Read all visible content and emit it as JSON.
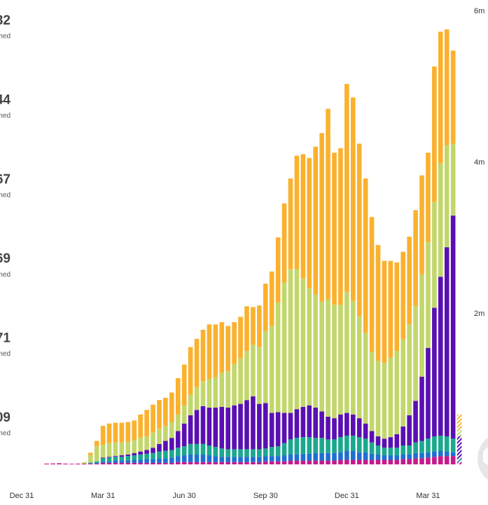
{
  "side_panel": [
    {
      "value": "32",
      "label": "med"
    },
    {
      "value": "44",
      "label": "med"
    },
    {
      "value": "67",
      "label": "med"
    },
    {
      "value": "69",
      "label": "med"
    },
    {
      "value": "71",
      "label": "med"
    },
    {
      "value": "09",
      "label": "med"
    }
  ],
  "chart_data": {
    "type": "stacked_bar",
    "categories": [
      "Dec 31",
      null,
      null,
      null,
      null,
      null,
      null,
      null,
      null,
      null,
      null,
      null,
      null,
      "Mar 31",
      null,
      null,
      null,
      null,
      null,
      null,
      null,
      null,
      null,
      null,
      null,
      null,
      "Jun 30",
      null,
      null,
      null,
      null,
      null,
      null,
      null,
      null,
      null,
      null,
      null,
      null,
      "Sep 30",
      null,
      null,
      null,
      null,
      null,
      null,
      null,
      null,
      null,
      null,
      null,
      null,
      "Dec 31",
      null,
      null,
      null,
      null,
      null,
      null,
      null,
      null,
      null,
      null,
      null,
      null,
      "Mar 31",
      null,
      null,
      null,
      null,
      null
    ],
    "series": [
      {
        "color": "#c51b8a",
        "values": [
          0,
          0,
          0,
          0,
          10000,
          12000,
          15000,
          10000,
          8000,
          10000,
          10000,
          10000,
          10000,
          20000,
          20000,
          20000,
          20000,
          20000,
          20000,
          20000,
          20000,
          20000,
          20000,
          20000,
          20000,
          30000,
          30000,
          30000,
          30000,
          30000,
          30000,
          30000,
          30000,
          30000,
          30000,
          30000,
          30000,
          30000,
          30000,
          40000,
          40000,
          40000,
          40000,
          50000,
          50000,
          50000,
          50000,
          50000,
          50000,
          50000,
          50000,
          60000,
          60000,
          60000,
          60000,
          60000,
          60000,
          60000,
          60000,
          60000,
          60000,
          70000,
          70000,
          80000,
          80000,
          90000,
          100000,
          110000,
          110000,
          110000,
          30000
        ]
      },
      {
        "color": "#1f6fd1",
        "values": [
          0,
          0,
          0,
          0,
          0,
          0,
          0,
          0,
          0,
          0,
          0,
          5000,
          10000,
          20000,
          20000,
          30000,
          30000,
          30000,
          40000,
          40000,
          50000,
          50000,
          60000,
          60000,
          70000,
          80000,
          90000,
          100000,
          100000,
          100000,
          90000,
          80000,
          70000,
          70000,
          70000,
          70000,
          70000,
          70000,
          70000,
          70000,
          70000,
          70000,
          80000,
          80000,
          80000,
          90000,
          90000,
          100000,
          100000,
          100000,
          100000,
          100000,
          120000,
          120000,
          100000,
          100000,
          80000,
          70000,
          60000,
          60000,
          60000,
          60000,
          60000,
          70000,
          70000,
          70000,
          70000,
          70000,
          60000,
          50000,
          10000
        ]
      },
      {
        "color": "#1aa88e",
        "values": [
          0,
          0,
          0,
          0,
          0,
          0,
          0,
          0,
          0,
          0,
          0,
          10000,
          20000,
          40000,
          50000,
          50000,
          50000,
          60000,
          60000,
          70000,
          70000,
          80000,
          90000,
          100000,
          100000,
          110000,
          120000,
          140000,
          140000,
          140000,
          130000,
          120000,
          110000,
          100000,
          100000,
          100000,
          100000,
          100000,
          100000,
          100000,
          120000,
          130000,
          160000,
          200000,
          220000,
          220000,
          220000,
          200000,
          200000,
          180000,
          180000,
          200000,
          200000,
          200000,
          200000,
          180000,
          150000,
          120000,
          100000,
          100000,
          100000,
          120000,
          120000,
          140000,
          160000,
          180000,
          200000,
          200000,
          200000,
          180000,
          30000
        ]
      },
      {
        "color": "#5a0fb3",
        "values": [
          0,
          0,
          0,
          0,
          0,
          0,
          0,
          0,
          0,
          0,
          0,
          0,
          0,
          10000,
          10000,
          10000,
          20000,
          20000,
          30000,
          40000,
          50000,
          70000,
          100000,
          130000,
          160000,
          220000,
          300000,
          380000,
          450000,
          500000,
          500000,
          520000,
          550000,
          550000,
          580000,
          600000,
          650000,
          700000,
          600000,
          600000,
          450000,
          450000,
          400000,
          350000,
          380000,
          400000,
          420000,
          400000,
          350000,
          300000,
          280000,
          300000,
          300000,
          280000,
          250000,
          200000,
          150000,
          120000,
          120000,
          140000,
          180000,
          250000,
          400000,
          550000,
          850000,
          1200000,
          1700000,
          2100000,
          2500000,
          2950000,
          300000
        ]
      },
      {
        "color": "#c2d76b",
        "values": [
          0,
          0,
          0,
          0,
          0,
          0,
          0,
          0,
          0,
          0,
          20000,
          100000,
          200000,
          170000,
          180000,
          180000,
          170000,
          170000,
          170000,
          180000,
          180000,
          200000,
          200000,
          200000,
          210000,
          220000,
          240000,
          270000,
          300000,
          330000,
          380000,
          400000,
          450000,
          480000,
          550000,
          600000,
          650000,
          680000,
          750000,
          950000,
          1150000,
          1450000,
          1720000,
          1900000,
          1850000,
          1700000,
          1550000,
          1500000,
          1450000,
          1550000,
          1500000,
          1450000,
          1600000,
          1500000,
          1350000,
          1200000,
          1050000,
          1000000,
          1000000,
          1050000,
          1100000,
          1150000,
          1200000,
          1250000,
          1350000,
          1400000,
          1400000,
          1500000,
          1350000,
          950000,
          100000
        ]
      },
      {
        "color": "#fbb12d",
        "values": [
          0,
          0,
          0,
          0,
          0,
          0,
          0,
          0,
          0,
          0,
          0,
          30000,
          70000,
          250000,
          260000,
          260000,
          260000,
          260000,
          260000,
          310000,
          350000,
          370000,
          380000,
          370000,
          390000,
          480000,
          540000,
          630000,
          640000,
          680000,
          720000,
          700000,
          670000,
          600000,
          550000,
          550000,
          590000,
          500000,
          550000,
          630000,
          720000,
          860000,
          1050000,
          1200000,
          1500000,
          1640000,
          1720000,
          1950000,
          2230000,
          2520000,
          2010000,
          2070000,
          2750000,
          2690000,
          2280000,
          2040000,
          1780000,
          1530000,
          1350000,
          1280000,
          1170000,
          1160000,
          1160000,
          1270000,
          1310000,
          1180000,
          1790000,
          1740000,
          1530000,
          1230000,
          190000
        ]
      }
    ],
    "ylim": [
      0,
      6000000
    ],
    "yticks": [
      {
        "value": 2000000,
        "label": "2m"
      },
      {
        "value": 4000000,
        "label": "4m"
      },
      {
        "value": 6000000,
        "label": "6m"
      }
    ],
    "y_axis_side": "right",
    "grid": false,
    "hatched_last": true
  }
}
